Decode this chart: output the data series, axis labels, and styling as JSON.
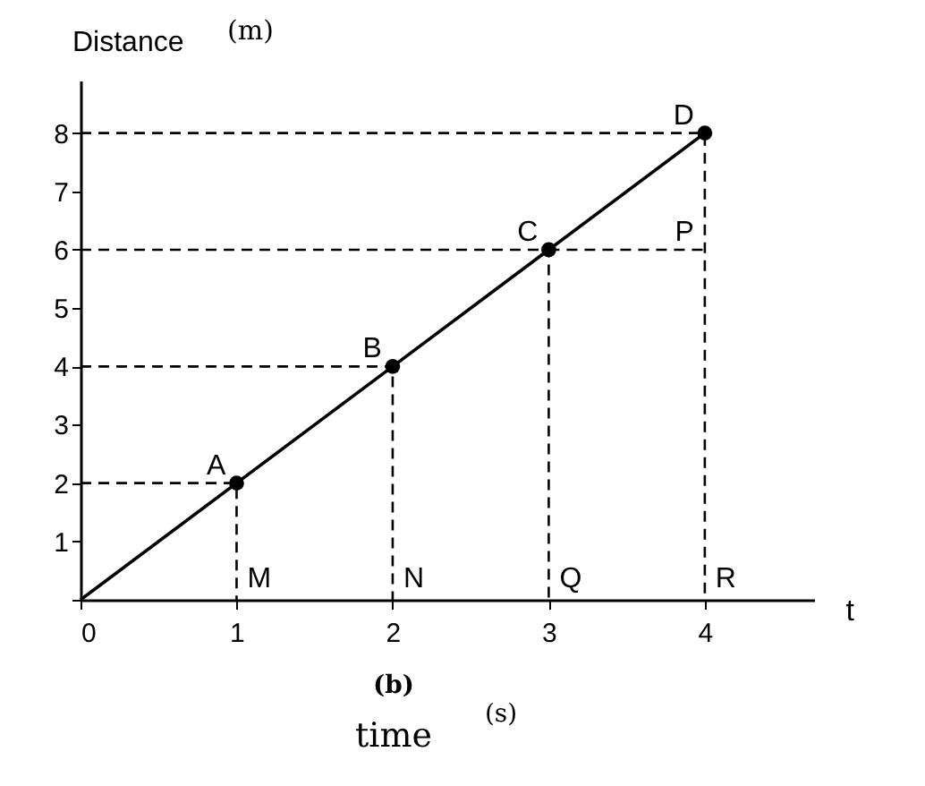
{
  "chart_data": {
    "type": "line",
    "xlabel": "t",
    "ylabel": "Distance",
    "xlim": [
      0,
      4.7
    ],
    "ylim": [
      0,
      8.9
    ],
    "xticks": [
      0,
      1,
      2,
      3,
      4
    ],
    "yticks": [
      {
        "value": 0,
        "label": null
      },
      1,
      2,
      3,
      4,
      5,
      6,
      7,
      8
    ],
    "grid": false,
    "marker": "none",
    "line_style": "solid",
    "series": [
      {
        "color": "#000000",
        "x": [
          0,
          1,
          2,
          3,
          4
        ],
        "values": [
          0,
          2,
          4,
          6,
          8
        ]
      },
      {
        "type": "scatter",
        "color": "#000000",
        "marker": "circle",
        "x": [
          1,
          2,
          3,
          4
        ],
        "values": [
          2,
          4,
          6,
          8
        ]
      },
      {
        "type": "line",
        "color": "#000000",
        "line_style": "dashed",
        "x": [
          0,
          1,
          1
        ],
        "values": [
          2,
          2,
          0
        ]
      },
      {
        "type": "line",
        "color": "#000000",
        "line_style": "dashed",
        "x": [
          0,
          2,
          2
        ],
        "values": [
          4,
          4,
          0
        ]
      },
      {
        "type": "line",
        "color": "#000000",
        "line_style": "dashed",
        "x": [
          0,
          3,
          3
        ],
        "values": [
          6,
          6,
          0
        ]
      },
      {
        "type": "line",
        "color": "#000000",
        "line_style": "dashed",
        "x": [
          0,
          4,
          4
        ],
        "values": [
          8,
          8,
          0
        ]
      },
      {
        "type": "line",
        "color": "#000000",
        "line_style": "dashed",
        "x": [
          3,
          4
        ],
        "values": [
          6,
          6
        ]
      }
    ],
    "annotations": [
      {
        "text": "A",
        "x": 1,
        "y": 2
      },
      {
        "text": "B",
        "x": 2,
        "y": 4
      },
      {
        "text": "C",
        "x": 3,
        "y": 6
      },
      {
        "text": "D",
        "x": 4,
        "y": 8
      },
      {
        "text": "P",
        "x": 4,
        "y": 6
      },
      {
        "text": "M",
        "x": 1,
        "y": 0
      },
      {
        "text": "N",
        "x": 2,
        "y": 0
      },
      {
        "text": "Q",
        "x": 3,
        "y": 0
      },
      {
        "text": "R",
        "x": 4,
        "y": 0
      },
      "(m)",
      "(b)",
      "time",
      "(s)"
    ]
  }
}
